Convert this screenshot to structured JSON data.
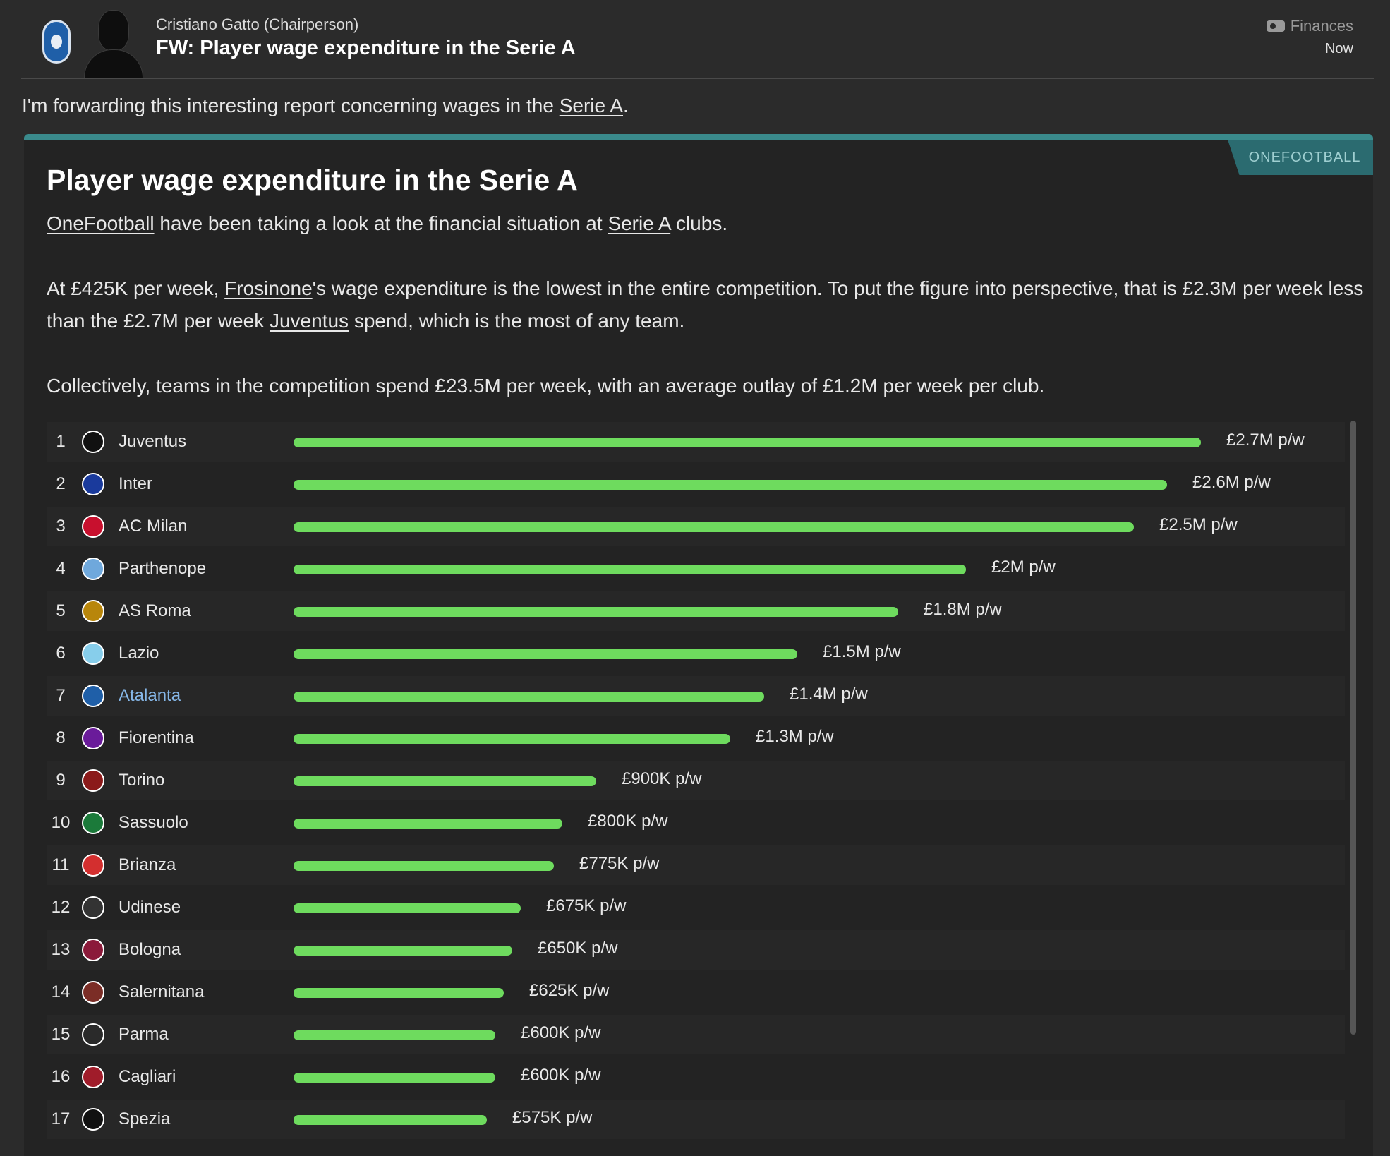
{
  "header": {
    "sender": "Cristiano Gatto",
    "sender_role": "(Chairperson)",
    "subject": "FW: Player wage expenditure in the Serie A",
    "category": "Finances",
    "time": "Now"
  },
  "intro": {
    "text_before": "I'm forwarding this interesting report concerning wages in the ",
    "link": "Serie A",
    "text_after": "."
  },
  "article": {
    "source": "ONEFOOTBALL",
    "title": "Player wage expenditure in the Serie A",
    "p1": {
      "link1": "OneFootball",
      "text1": " have been taking a look at the financial situation at ",
      "link2": "Serie A",
      "text2": " clubs."
    },
    "p2": {
      "text1": "At £425K per week, ",
      "link1": "Frosinone",
      "text2": "'s wage expenditure is the lowest in the entire competition. To put the figure into perspective, that is £2.3M per week less than the £2.7M per week ",
      "link2": "Juventus",
      "text3": " spend, which is the most of any team."
    },
    "p3": "Collectively, teams in the competition spend £23.5M per week, with an average outlay of £1.2M per week per club."
  },
  "chart_data": {
    "type": "bar",
    "orientation": "horizontal",
    "unit": "£ per week",
    "rows": [
      {
        "rank": "1",
        "team": "Juventus",
        "value": 2700000,
        "label": "£2.7M p/w",
        "crest_color": "#111111",
        "highlight": false
      },
      {
        "rank": "2",
        "team": "Inter",
        "value": 2600000,
        "label": "£2.6M p/w",
        "crest_color": "#1a3a9c",
        "highlight": false
      },
      {
        "rank": "3",
        "team": "AC Milan",
        "value": 2500000,
        "label": "£2.5M p/w",
        "crest_color": "#c8102e",
        "highlight": false
      },
      {
        "rank": "4",
        "team": "Parthenope",
        "value": 2000000,
        "label": "£2M p/w",
        "crest_color": "#6fa8dc",
        "highlight": false
      },
      {
        "rank": "5",
        "team": "AS Roma",
        "value": 1800000,
        "label": "£1.8M p/w",
        "crest_color": "#b8860b",
        "highlight": false
      },
      {
        "rank": "6",
        "team": "Lazio",
        "value": 1500000,
        "label": "£1.5M p/w",
        "crest_color": "#87ceeb",
        "highlight": false
      },
      {
        "rank": "7",
        "team": "Atalanta",
        "value": 1400000,
        "label": "£1.4M p/w",
        "crest_color": "#1f5fa8",
        "highlight": true
      },
      {
        "rank": "8",
        "team": "Fiorentina",
        "value": 1300000,
        "label": "£1.3M p/w",
        "crest_color": "#6a1b9a",
        "highlight": false
      },
      {
        "rank": "9",
        "team": "Torino",
        "value": 900000,
        "label": "£900K p/w",
        "crest_color": "#8b1a1a",
        "highlight": false
      },
      {
        "rank": "10",
        "team": "Sassuolo",
        "value": 800000,
        "label": "£800K p/w",
        "crest_color": "#1b7a3a",
        "highlight": false
      },
      {
        "rank": "11",
        "team": "Brianza",
        "value": 775000,
        "label": "£775K p/w",
        "crest_color": "#d32f2f",
        "highlight": false
      },
      {
        "rank": "12",
        "team": "Udinese",
        "value": 675000,
        "label": "£675K p/w",
        "crest_color": "#333333",
        "highlight": false
      },
      {
        "rank": "13",
        "team": "Bologna",
        "value": 650000,
        "label": "£650K p/w",
        "crest_color": "#8b1a3a",
        "highlight": false
      },
      {
        "rank": "14",
        "team": "Salernitana",
        "value": 625000,
        "label": "£625K p/w",
        "crest_color": "#7b2d26",
        "highlight": false
      },
      {
        "rank": "15",
        "team": "Parma",
        "value": 600000,
        "label": "£600K p/w",
        "crest_color": "#2a2a2a",
        "highlight": false
      },
      {
        "rank": "16",
        "team": "Cagliari",
        "value": 600000,
        "label": "£600K p/w",
        "crest_color": "#a01c2a",
        "highlight": false
      },
      {
        "rank": "17",
        "team": "Spezia",
        "value": 575000,
        "label": "£575K p/w",
        "crest_color": "#111111",
        "highlight": false
      }
    ],
    "bar_color": "#6edb5e"
  }
}
